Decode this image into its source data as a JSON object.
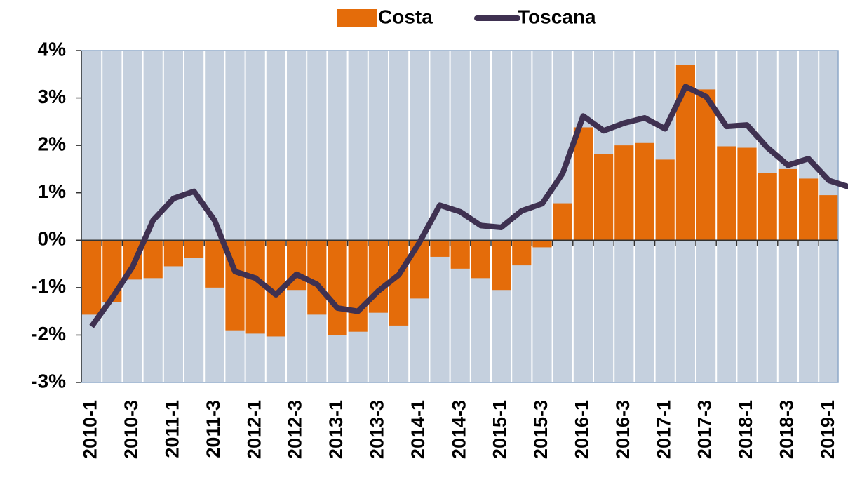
{
  "chart_data": {
    "type": "bar-line",
    "categories": [
      "2010-1",
      null,
      "2010-3",
      null,
      "2011-1",
      null,
      "2011-3",
      null,
      "2012-1",
      null,
      "2012-3",
      null,
      "2013-1",
      null,
      "2013-3",
      null,
      "2014-1",
      null,
      "2014-3",
      null,
      "2015-1",
      null,
      "2015-3",
      null,
      "2016-1",
      null,
      "2016-3",
      null,
      "2017-1",
      null,
      "2017-3",
      null,
      "2018-1",
      null,
      "2018-3",
      null,
      "2019-1",
      null
    ],
    "series": [
      {
        "name": "Costa",
        "type": "bar",
        "color": "#e46c0a",
        "values": [
          -1.57,
          -1.3,
          -0.83,
          -0.8,
          -0.55,
          -0.37,
          -1.0,
          -1.9,
          -1.97,
          -2.03,
          -1.05,
          -1.57,
          -2.0,
          -1.93,
          -1.53,
          -1.8,
          -1.23,
          -0.35,
          -0.6,
          -0.8,
          -1.05,
          -0.53,
          -0.15,
          0.78,
          2.38,
          1.82,
          2.0,
          2.05,
          1.7,
          3.7,
          3.18,
          1.98,
          1.95,
          1.42,
          1.5,
          1.3,
          0.95,
          0.8
        ]
      },
      {
        "name": "Toscana",
        "type": "line",
        "color": "#3f3151",
        "values": [
          -1.82,
          -1.22,
          -0.56,
          0.42,
          0.88,
          1.03,
          0.42,
          -0.66,
          -0.8,
          -1.15,
          -0.72,
          -0.93,
          -1.43,
          -1.5,
          -1.07,
          -0.73,
          -0.05,
          0.74,
          0.6,
          0.31,
          0.27,
          0.62,
          0.77,
          1.41,
          2.62,
          2.31,
          2.47,
          2.58,
          2.35,
          3.24,
          3.03,
          2.4,
          2.43,
          1.95,
          1.58,
          1.72,
          1.26,
          1.12
        ]
      }
    ],
    "ylim": [
      -3,
      4
    ],
    "yticks": [
      {
        "value": -3,
        "label": "-3%"
      },
      {
        "value": -2,
        "label": "-2%"
      },
      {
        "value": -1,
        "label": "-1%"
      },
      {
        "value": 0,
        "label": "0%"
      },
      {
        "value": 1,
        "label": "1%"
      },
      {
        "value": 2,
        "label": "2%"
      },
      {
        "value": 3,
        "label": "3%"
      },
      {
        "value": 4,
        "label": "4%"
      }
    ],
    "legend": "top"
  }
}
